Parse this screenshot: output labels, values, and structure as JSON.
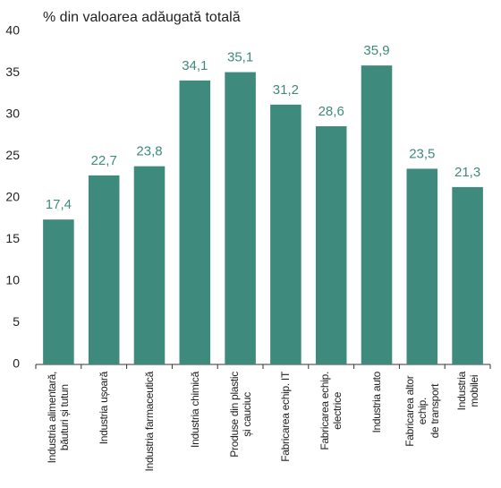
{
  "chart_data": {
    "type": "bar",
    "title": "% din valoarea adăugată totală",
    "categories": [
      "Industria alimentară,\nbăuturi și tutun",
      "Industria ușoară",
      "Industria farmaceutică",
      "Industria chimică",
      "Produse din plastic\nși cauciuc",
      "Fabricarea echip. IT",
      "Fabricarea echip.\nelectrice",
      "Industria auto",
      "Fabricarea altor echip.\nde transport",
      "Industria mobilei"
    ],
    "values": [
      17.4,
      22.7,
      23.8,
      34.1,
      35.1,
      31.2,
      28.6,
      35.9,
      23.5,
      21.3
    ],
    "value_labels": [
      "17,4",
      "22,7",
      "23,8",
      "34,1",
      "35,1",
      "31,2",
      "28,6",
      "35,9",
      "23,5",
      "21,3"
    ],
    "color": "#3e8a7c",
    "ylim": [
      0,
      40
    ],
    "yticks": [
      0,
      5,
      10,
      15,
      20,
      25,
      30,
      35,
      40
    ]
  }
}
